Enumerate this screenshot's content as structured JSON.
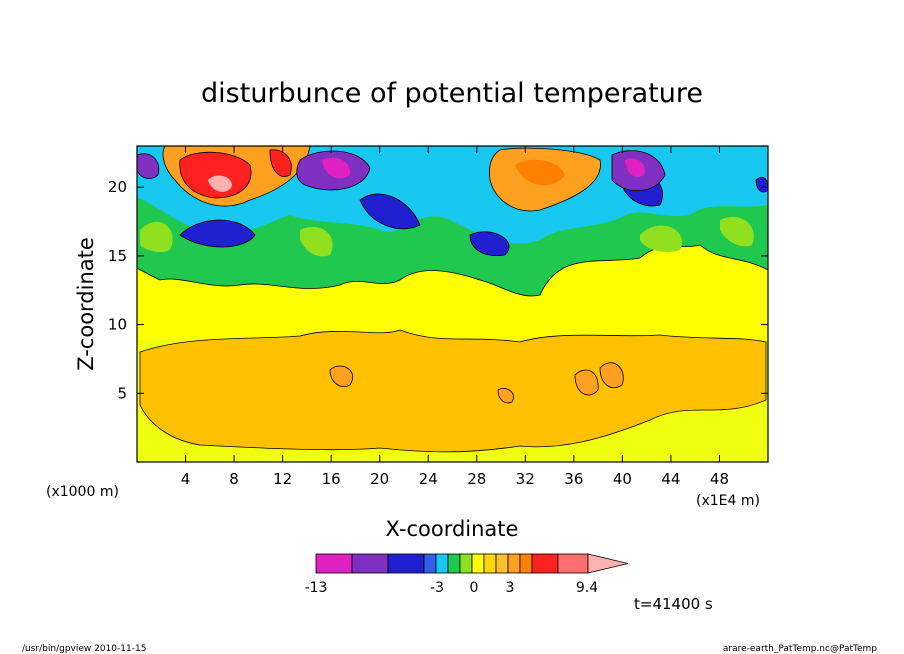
{
  "chart_data": {
    "type": "heatmap",
    "title": "disturbunce of potential temperature",
    "xlabel": "X-coordinate",
    "ylabel": "Z-coordinate",
    "x_unit_left": "(x1000 m)",
    "x_unit_right": "(x1E4 m)",
    "xlim": [
      0,
      52
    ],
    "ylim": [
      0,
      23
    ],
    "xticks": [
      "4",
      "8",
      "12",
      "16",
      "20",
      "24",
      "28",
      "32",
      "36",
      "40",
      "44",
      "48"
    ],
    "yticks": [
      "5",
      "10",
      "15",
      "20"
    ],
    "colorbar": {
      "tick_labels": [
        "-13",
        "-3",
        "0",
        "3",
        "9.4"
      ],
      "colors": [
        "#e020c0",
        "#e020c0",
        "#8030c0",
        "#2020d0",
        "#3060e8",
        "#18c8f0",
        "#20c850",
        "#90e020",
        "#ffff00",
        "#ffd800",
        "#ffc030",
        "#ffa020",
        "#ff8000",
        "#ff2020",
        "#ff6e6e",
        "#ffb0b0"
      ]
    },
    "time_label": "t=41400 s",
    "grid": false
  },
  "footer": {
    "left": "/usr/bin/gpview  2010-11-15",
    "right": "arare-earth_PatTemp.nc@PatTemp"
  }
}
